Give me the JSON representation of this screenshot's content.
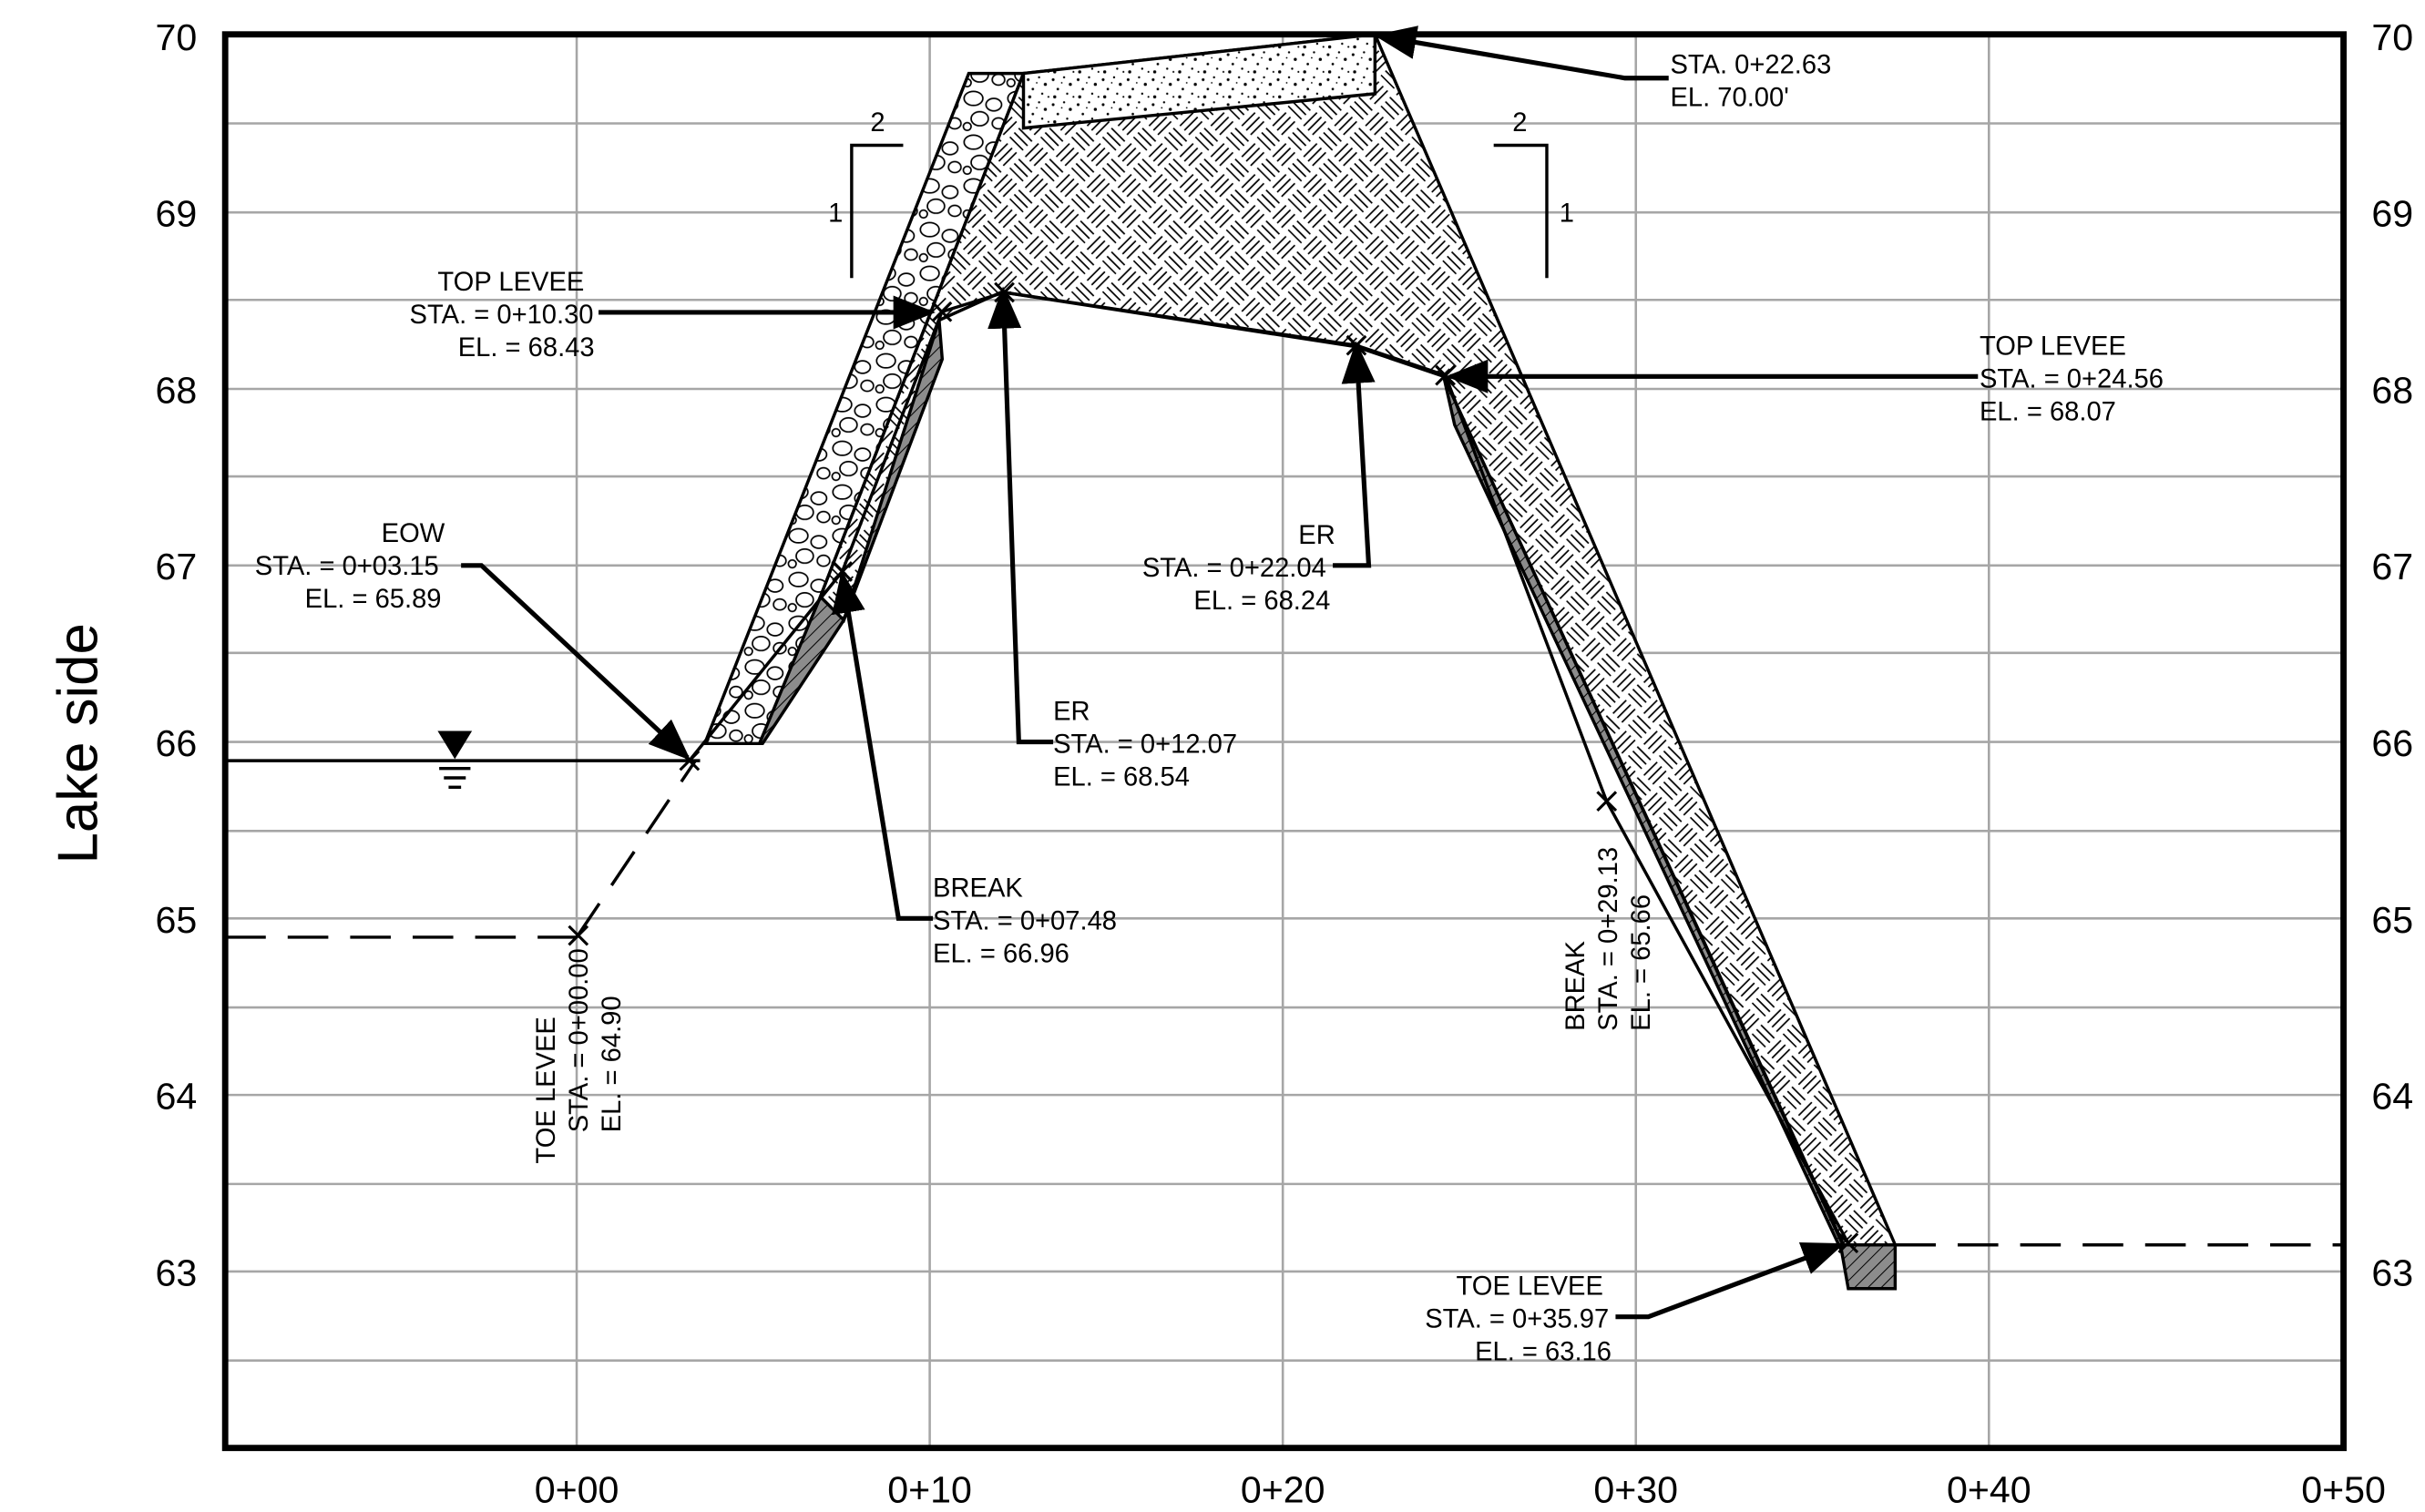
{
  "side_label": "Lake side",
  "axis": {
    "y_ticks": [
      "63",
      "64",
      "65",
      "66",
      "67",
      "68",
      "69",
      "70"
    ],
    "x_ticks": [
      "0+00",
      "0+10",
      "0+20",
      "0+30",
      "0+40",
      "0+50"
    ],
    "x_range_ft": [
      -10,
      50
    ],
    "y_range_ft": [
      62,
      70
    ]
  },
  "profile_points": [
    {
      "sta": 0.0,
      "el": 64.9
    },
    {
      "sta": 3.15,
      "el": 65.89
    },
    {
      "sta": 7.48,
      "el": 66.96
    },
    {
      "sta": 10.3,
      "el": 68.43
    },
    {
      "sta": 12.07,
      "el": 68.54
    },
    {
      "sta": 22.04,
      "el": 68.24
    },
    {
      "sta": 24.56,
      "el": 68.07
    },
    {
      "sta": 29.13,
      "el": 65.66
    },
    {
      "sta": 35.97,
      "el": 63.16
    }
  ],
  "slope_marks": [
    {
      "run": "2",
      "rise": "1"
    },
    {
      "run": "2",
      "rise": "1"
    }
  ],
  "annotations": {
    "eow": {
      "title": "EOW",
      "sta": "STA. = 0+03.15",
      "el": "EL. = 65.89"
    },
    "top_levee_left": {
      "title": "TOP LEVEE",
      "sta": "STA. = 0+10.30",
      "el": "EL. = 68.43"
    },
    "er_left": {
      "title": "ER",
      "sta": "STA. = 0+12.07",
      "el": "EL. = 68.54"
    },
    "break_left": {
      "title": "BREAK",
      "sta": "STA. = 0+07.48",
      "el": "EL. = 66.96"
    },
    "toe_levee_left": {
      "title": "TOE LEVEE",
      "sta": "STA. = 0+00.00",
      "el": "EL. = 64.90"
    },
    "crest": {
      "sta": "STA. 0+22.63",
      "el": "EL. 70.00'"
    },
    "er_right": {
      "title": "ER",
      "sta": "STA. = 0+22.04",
      "el": "EL. = 68.24"
    },
    "top_levee_right": {
      "title": "TOP LEVEE",
      "sta": "STA. = 0+24.56",
      "el": "EL. = 68.07"
    },
    "break_right": {
      "title": "BREAK",
      "sta": "STA. = 0+29.13",
      "el": "EL. = 65.66"
    },
    "toe_levee_right": {
      "title": "TOE LEVEE",
      "sta": "STA. = 0+35.97",
      "el": "EL. = 63.16"
    }
  }
}
